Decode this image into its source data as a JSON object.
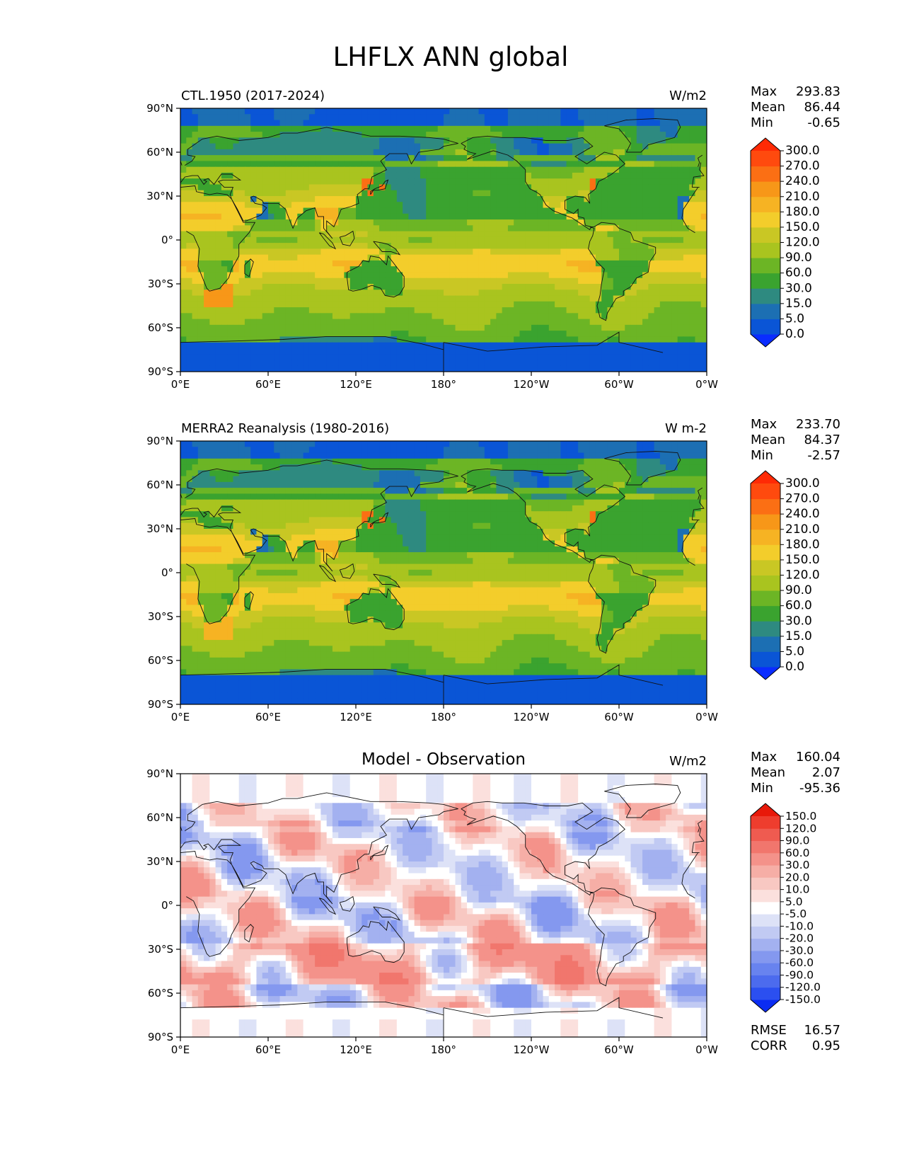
{
  "figure": {
    "title": "LHFLX ANN global"
  },
  "axis_labels": {
    "x_ticks": [
      "0°E",
      "60°E",
      "120°E",
      "180°",
      "120°W",
      "60°W",
      "0°W"
    ],
    "y_ticks": [
      "90°N",
      "60°N",
      "30°N",
      "0°",
      "30°S",
      "60°S",
      "90°S"
    ]
  },
  "chart_data": [
    {
      "type": "heatmap",
      "panel": "model",
      "left_title": "CTL.1950 (2017-2024)",
      "center_title": "",
      "units": "W/m2",
      "stats": {
        "max_label": "Max",
        "max": "293.83",
        "mean_label": "Mean",
        "mean": "86.44",
        "min_label": "Min",
        "min": "-0.65"
      },
      "x_range": [
        0,
        360
      ],
      "y_range": [
        -90,
        90
      ],
      "colorbar": {
        "extend": "both",
        "levels": [
          "0.0",
          "5.0",
          "15.0",
          "30.0",
          "60.0",
          "90.0",
          "120.0",
          "150.0",
          "180.0",
          "210.0",
          "240.0",
          "270.0",
          "300.0"
        ],
        "colors": [
          "#0a2cff",
          "#0a55d6",
          "#1c6fb3",
          "#2e8a80",
          "#3aa32f",
          "#6cb525",
          "#a9c41f",
          "#c9c724",
          "#f3cd2b",
          "#f6b323",
          "#f79718",
          "#fb6f14",
          "#ff4a0e",
          "#ff2a05"
        ]
      }
    },
    {
      "type": "heatmap",
      "panel": "reference",
      "left_title": "MERRA2 Reanalysis (1980-2016)",
      "center_title": "",
      "units": "W m-2",
      "stats": {
        "max_label": "Max",
        "max": "233.70",
        "mean_label": "Mean",
        "mean": "84.37",
        "min_label": "Min",
        "min": "-2.57"
      },
      "x_range": [
        0,
        360
      ],
      "y_range": [
        -90,
        90
      ],
      "colorbar": {
        "extend": "both",
        "levels": [
          "0.0",
          "5.0",
          "15.0",
          "30.0",
          "60.0",
          "90.0",
          "120.0",
          "150.0",
          "180.0",
          "210.0",
          "240.0",
          "270.0",
          "300.0"
        ],
        "colors": [
          "#0a2cff",
          "#0a55d6",
          "#1c6fb3",
          "#2e8a80",
          "#3aa32f",
          "#6cb525",
          "#a9c41f",
          "#c9c724",
          "#f3cd2b",
          "#f6b323",
          "#f79718",
          "#fb6f14",
          "#ff4a0e",
          "#ff2a05"
        ]
      }
    },
    {
      "type": "heatmap",
      "panel": "difference",
      "left_title": "",
      "center_title": "Model - Observation",
      "units": "W/m2",
      "stats": {
        "max_label": "Max",
        "max": "160.04",
        "mean_label": "Mean",
        "mean": "2.07",
        "min_label": "Min",
        "min": "-95.36",
        "rmse_label": "RMSE",
        "rmse": "16.57",
        "corr_label": "CORR",
        "corr": "0.95"
      },
      "x_range": [
        0,
        360
      ],
      "y_range": [
        -90,
        90
      ],
      "colorbar": {
        "extend": "both",
        "levels": [
          "-150.0",
          "-120.0",
          "-90.0",
          "-60.0",
          "-30.0",
          "-20.0",
          "-10.0",
          "-5.0",
          "5.0",
          "10.0",
          "20.0",
          "30.0",
          "60.0",
          "90.0",
          "120.0",
          "150.0"
        ],
        "colors": [
          "#0b2cf2",
          "#2b4ff0",
          "#4c6bee",
          "#6883ef",
          "#8498ef",
          "#a3b1f0",
          "#c1caf3",
          "#dde2f7",
          "#ffffff",
          "#fbe0dd",
          "#f8c8c2",
          "#f6aea6",
          "#f4928a",
          "#f1766d",
          "#ef5b50",
          "#ee3d2e",
          "#e8190a"
        ]
      }
    }
  ]
}
